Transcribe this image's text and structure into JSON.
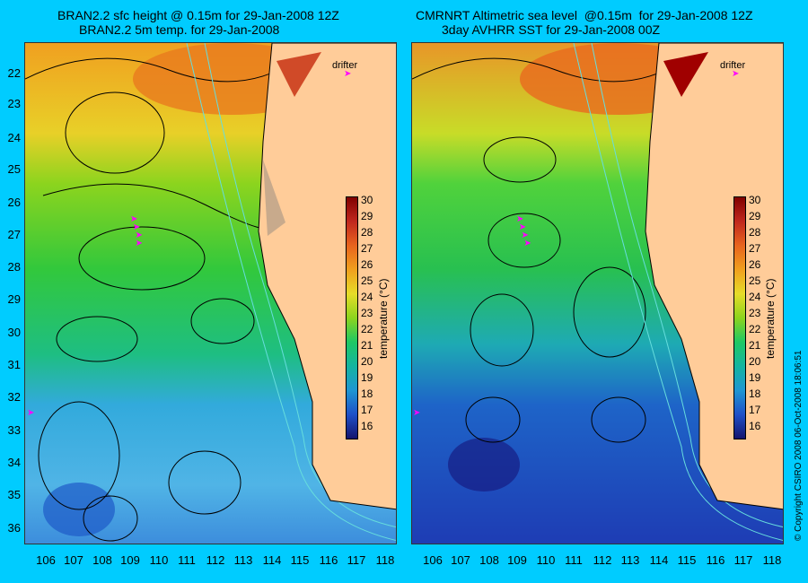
{
  "left_panel": {
    "title_line1": "BRAN2.2 sfc height @ 0.15m for 29-Jan-2008 12Z",
    "title_line2": "BRAN2.2 5m temp. for 29-Jan-2008",
    "drifter_label": "drifter"
  },
  "right_panel": {
    "title_line1": "CMRNRT Altimetric sea level  @0.15m  for 29-Jan-2008 12Z",
    "title_line2": "3day AVHRR SST for 29-Jan-2008 00Z",
    "drifter_label": "drifter"
  },
  "latitudes": [
    "22",
    "23",
    "24",
    "25",
    "26",
    "27",
    "28",
    "29",
    "30",
    "31",
    "32",
    "33",
    "34",
    "35",
    "36"
  ],
  "longitudes": [
    "106",
    "107",
    "108",
    "109",
    "110",
    "111",
    "112",
    "113",
    "114",
    "115",
    "116",
    "117",
    "118"
  ],
  "colorbar": {
    "ticks": [
      "30",
      "29",
      "28",
      "27",
      "26",
      "25",
      "24",
      "23",
      "22",
      "21",
      "20",
      "19",
      "18",
      "17",
      "16"
    ],
    "label": "temperature (°C)",
    "colors": [
      "#800000",
      "#b22222",
      "#d2421e",
      "#e8671e",
      "#f08c1e",
      "#f0b41e",
      "#e6dc28",
      "#aadc1e",
      "#46d23c",
      "#1ec864",
      "#14b4a0",
      "#1e96d2",
      "#1e50c8",
      "#1e1ea0",
      "#14146e"
    ]
  },
  "copyright": "© Copyright CSIRO 2008    06-Oct-2008 18:06:51",
  "colors": {
    "background": "#00ccff",
    "land": "#ffcc99",
    "drifter": "#ff00ff",
    "contour": "#000000",
    "bathy": "#66dddd"
  }
}
